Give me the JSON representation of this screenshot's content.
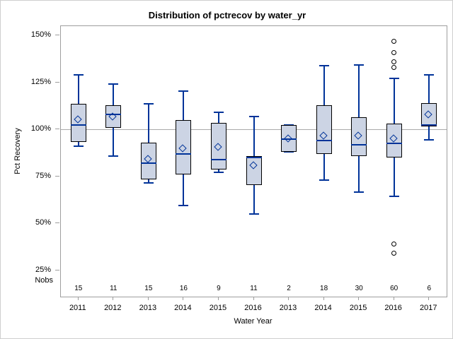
{
  "colors": {
    "box_fill": "#ccd4e4",
    "box_border": "#000000",
    "whisker": "#003399",
    "reference_line": "#a9a9a9",
    "frame": "#9e9e9e",
    "outlier": "#000000",
    "figure_border": "#cfcfcf",
    "background": "#ffffff"
  },
  "chart_data": {
    "type": "boxplot",
    "title": "Distribution of pctrecov by water_yr",
    "xlabel": "Water Year",
    "ylabel": "Pct Recovery",
    "nobs_label": "Nobs",
    "y_ticks": [
      150,
      125,
      100,
      75,
      50,
      25
    ],
    "y_tick_suffix": "%",
    "ylim": [
      11,
      155
    ],
    "reference_line_y": 100,
    "grid": false,
    "legend": "none",
    "groups": [
      {
        "year": "2011",
        "nobs": 15,
        "low": 91,
        "q1": 93.5,
        "median": 102.5,
        "q3": 113.5,
        "high": 129,
        "mean": 105,
        "outliers": []
      },
      {
        "year": "2012",
        "nobs": 11,
        "low": 86,
        "q1": 101,
        "median": 108,
        "q3": 113,
        "high": 124,
        "mean": 106.5,
        "outliers": []
      },
      {
        "year": "2013",
        "nobs": 15,
        "low": 71.5,
        "q1": 73.5,
        "median": 82,
        "q3": 93,
        "high": 113.5,
        "mean": 84,
        "outliers": []
      },
      {
        "year": "2014",
        "nobs": 16,
        "low": 59.5,
        "q1": 76,
        "median": 87,
        "q3": 105,
        "high": 120.5,
        "mean": 89.5,
        "outliers": []
      },
      {
        "year": "2015",
        "nobs": 9,
        "low": 77,
        "q1": 78.5,
        "median": 84,
        "q3": 103.5,
        "high": 109,
        "mean": 90.5,
        "outliers": []
      },
      {
        "year": "2016",
        "nobs": 11,
        "low": 55,
        "q1": 70.5,
        "median": 85,
        "q3": 86,
        "high": 107,
        "mean": 80.5,
        "outliers": []
      },
      {
        "year": "2013",
        "nobs": 2,
        "low": 88,
        "q1": 88,
        "median": 95,
        "q3": 102.5,
        "high": 102.5,
        "mean": 95,
        "outliers": []
      },
      {
        "year": "2014",
        "nobs": 18,
        "low": 73,
        "q1": 87,
        "median": 94,
        "q3": 113,
        "high": 134,
        "mean": 96.5,
        "outliers": []
      },
      {
        "year": "2015",
        "nobs": 30,
        "low": 66.5,
        "q1": 86,
        "median": 92,
        "q3": 106.5,
        "high": 134.5,
        "mean": 96.5,
        "outliers": []
      },
      {
        "year": "2016",
        "nobs": 60,
        "low": 64.5,
        "q1": 85,
        "median": 92.5,
        "q3": 103,
        "high": 127,
        "mean": 95,
        "outliers": [
          147,
          141,
          136,
          133,
          39,
          34
        ]
      },
      {
        "year": "2017",
        "nobs": 6,
        "low": 94.5,
        "q1": 101.5,
        "median": 102.5,
        "q3": 114,
        "high": 129,
        "mean": 107.5,
        "outliers": []
      }
    ]
  }
}
